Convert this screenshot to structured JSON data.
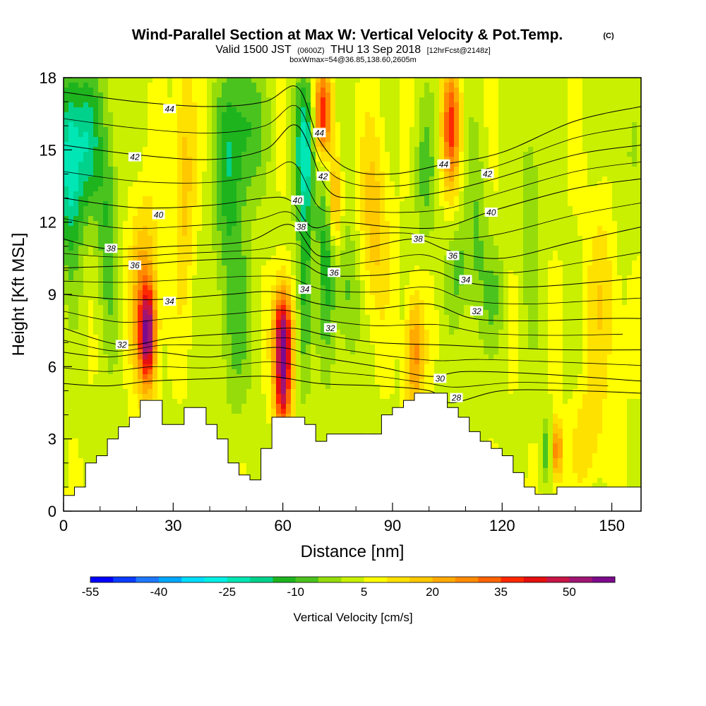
{
  "chart_data": {
    "type": "heatmap",
    "title": {
      "main": "Wind-Parallel Section at Max W: Vertical Velocity & Pot.Temp.",
      "copyright": "(C)"
    },
    "subtitle": {
      "valid_prefix": "Valid 1500 JST",
      "utc": "(0600Z)",
      "valid_suffix": "THU 13 Sep 2018",
      "forecast": "[12hrFcst@2148z]"
    },
    "subtitle2": "boxWmax=54@36.85,138.60,2605m",
    "xlabel": "Distance [nm]",
    "ylabel": "Height [Kft MSL]",
    "xlim": [
      0,
      158
    ],
    "ylim": [
      0,
      18
    ],
    "x_ticks": [
      {
        "value": 0,
        "label": "0"
      },
      {
        "value": 30,
        "label": "30"
      },
      {
        "value": 60,
        "label": "60"
      },
      {
        "value": 90,
        "label": "90"
      },
      {
        "value": 120,
        "label": "120"
      },
      {
        "value": 150,
        "label": "150"
      }
    ],
    "y_ticks": [
      {
        "value": 0,
        "label": "0"
      },
      {
        "value": 3,
        "label": "3"
      },
      {
        "value": 6,
        "label": "6"
      },
      {
        "value": 9,
        "label": "9"
      },
      {
        "value": 12,
        "label": "12"
      },
      {
        "value": 15,
        "label": "15"
      },
      {
        "value": 18,
        "label": "18"
      }
    ],
    "colorbar": {
      "label": "Vertical Velocity [cm/s]",
      "min": -55,
      "max": 60,
      "step": 5,
      "colors": [
        "#0000ff",
        "#0a3cff",
        "#1e78ff",
        "#00a8ff",
        "#00dcff",
        "#00f0e6",
        "#00e6b4",
        "#00d28c",
        "#1eb41e",
        "#4bc31e",
        "#96dc0a",
        "#c8f000",
        "#ffff00",
        "#ffe100",
        "#ffc800",
        "#ffaa00",
        "#ff8c00",
        "#ff6400",
        "#ff2800",
        "#e60f0f",
        "#c81446",
        "#a01473",
        "#7d0a8c"
      ],
      "tick_labels": [
        "-55",
        "-40",
        "-25",
        "-10",
        "5",
        "20",
        "35",
        "50"
      ],
      "tick_values": [
        -55,
        -40,
        -25,
        -10,
        5,
        20,
        35,
        50
      ]
    },
    "terrain_kft": [
      [
        0,
        0.65
      ],
      [
        3,
        1.0
      ],
      [
        6,
        2.0
      ],
      [
        9,
        2.3
      ],
      [
        12,
        3.0
      ],
      [
        15,
        3.5
      ],
      [
        18,
        3.9
      ],
      [
        21,
        4.6
      ],
      [
        27,
        3.6
      ],
      [
        33,
        4.3
      ],
      [
        39,
        3.6
      ],
      [
        42,
        3.0
      ],
      [
        45,
        2.0
      ],
      [
        48,
        1.5
      ],
      [
        51,
        1.3
      ],
      [
        54,
        2.6
      ],
      [
        57,
        3.9
      ],
      [
        60,
        3.9
      ],
      [
        63,
        3.9
      ],
      [
        66,
        3.6
      ],
      [
        69,
        2.9
      ],
      [
        72,
        3.2
      ],
      [
        75,
        3.2
      ],
      [
        78,
        3.2
      ],
      [
        81,
        3.2
      ],
      [
        84,
        3.2
      ],
      [
        87,
        4.0
      ],
      [
        90,
        4.3
      ],
      [
        93,
        4.6
      ],
      [
        96,
        4.9
      ],
      [
        99,
        4.9
      ],
      [
        102,
        4.9
      ],
      [
        105,
        4.3
      ],
      [
        108,
        3.9
      ],
      [
        111,
        3.3
      ],
      [
        114,
        2.9
      ],
      [
        117,
        2.6
      ],
      [
        120,
        2.3
      ],
      [
        123,
        1.6
      ],
      [
        126,
        1.0
      ],
      [
        129,
        0.7
      ],
      [
        132,
        0.7
      ],
      [
        135,
        1.0
      ],
      [
        138,
        1.0
      ],
      [
        141,
        1.0
      ],
      [
        144,
        1.0
      ],
      [
        147,
        1.0
      ],
      [
        150,
        1.0
      ],
      [
        153,
        1.0
      ],
      [
        158,
        1.0
      ]
    ],
    "theta_contours": [
      {
        "label": "44",
        "points": [
          [
            0,
            17.4
          ],
          [
            20,
            17.0
          ],
          [
            40,
            16.8
          ],
          [
            55,
            17.0
          ],
          [
            64,
            17.6
          ],
          [
            70,
            15.4
          ],
          [
            78,
            14.2
          ],
          [
            90,
            14.0
          ],
          [
            104,
            14.4
          ],
          [
            120,
            14.9
          ],
          [
            140,
            16.2
          ],
          [
            158,
            16.8
          ]
        ]
      },
      {
        "label": "42",
        "points": [
          [
            0,
            15.2
          ],
          [
            20,
            14.8
          ],
          [
            40,
            14.6
          ],
          [
            55,
            15.0
          ],
          [
            64,
            16.0
          ],
          [
            72,
            13.4
          ],
          [
            80,
            13.0
          ],
          [
            92,
            13.0
          ],
          [
            105,
            13.3
          ],
          [
            118,
            13.8
          ],
          [
            140,
            14.8
          ],
          [
            158,
            15.2
          ]
        ]
      },
      {
        "label": "40",
        "points": [
          [
            0,
            13.0
          ],
          [
            20,
            12.6
          ],
          [
            40,
            12.7
          ],
          [
            55,
            13.0
          ],
          [
            62,
            12.9
          ],
          [
            68,
            11.8
          ],
          [
            76,
            12.0
          ],
          [
            90,
            11.8
          ],
          [
            104,
            11.8
          ],
          [
            118,
            12.5
          ],
          [
            140,
            13.4
          ],
          [
            158,
            13.8
          ]
        ]
      },
      {
        "label": "38",
        "points": [
          [
            0,
            11.3
          ],
          [
            12,
            10.9
          ],
          [
            30,
            11.0
          ],
          [
            50,
            11.2
          ],
          [
            62,
            11.9
          ],
          [
            70,
            10.6
          ],
          [
            82,
            10.9
          ],
          [
            96,
            11.3
          ],
          [
            106,
            10.8
          ],
          [
            120,
            10.5
          ],
          [
            140,
            11.2
          ],
          [
            158,
            11.8
          ]
        ]
      },
      {
        "label": "36",
        "points": [
          [
            0,
            10.1
          ],
          [
            18,
            10.2
          ],
          [
            35,
            10.4
          ],
          [
            55,
            10.5
          ],
          [
            65,
            10.3
          ],
          [
            72,
            9.8
          ],
          [
            86,
            9.8
          ],
          [
            100,
            10.0
          ],
          [
            110,
            9.5
          ],
          [
            125,
            9.3
          ],
          [
            145,
            9.5
          ],
          [
            158,
            9.7
          ]
        ]
      },
      {
        "label": "34",
        "points": [
          [
            0,
            9.0
          ],
          [
            15,
            8.8
          ],
          [
            28,
            8.8
          ],
          [
            45,
            9.0
          ],
          [
            58,
            9.1
          ],
          [
            70,
            8.6
          ],
          [
            84,
            8.4
          ],
          [
            100,
            8.6
          ],
          [
            112,
            8.0
          ],
          [
            128,
            7.9
          ],
          [
            148,
            8.0
          ],
          [
            158,
            8.0
          ]
        ]
      },
      {
        "label": "32",
        "points": [
          [
            0,
            7.6
          ],
          [
            16,
            6.9
          ],
          [
            30,
            7.2
          ],
          [
            48,
            7.4
          ],
          [
            62,
            7.6
          ],
          [
            72,
            7.3
          ],
          [
            86,
            7.0
          ],
          [
            104,
            6.9
          ],
          [
            118,
            6.8
          ],
          [
            138,
            6.7
          ],
          [
            158,
            6.7
          ]
        ]
      },
      {
        "label": "30",
        "points": [
          [
            0,
            6.6
          ],
          [
            12,
            6.4
          ],
          [
            25,
            6.6
          ],
          [
            40,
            6.4
          ],
          [
            58,
            6.8
          ],
          [
            70,
            6.4
          ],
          [
            86,
            6.0
          ],
          [
            100,
            5.6
          ],
          [
            110,
            5.8
          ],
          [
            130,
            5.7
          ],
          [
            158,
            5.4
          ]
        ]
      },
      {
        "label": "28",
        "points": [
          [
            0,
            5.3
          ],
          [
            12,
            5.2
          ],
          [
            24,
            5.4
          ],
          [
            40,
            5.5
          ],
          [
            56,
            5.6
          ],
          [
            70,
            5.3
          ],
          [
            86,
            5.2
          ],
          [
            100,
            5.0
          ],
          [
            106,
            4.5
          ],
          [
            120,
            5.0
          ],
          [
            140,
            5.0
          ],
          [
            158,
            4.9
          ]
        ]
      }
    ],
    "contour_labels": [
      {
        "text": "44",
        "x": 29,
        "y": 16.7
      },
      {
        "text": "44",
        "x": 70,
        "y": 15.7
      },
      {
        "text": "44",
        "x": 104,
        "y": 14.4
      },
      {
        "text": "42",
        "x": 19.5,
        "y": 14.7
      },
      {
        "text": "42",
        "x": 71,
        "y": 13.9
      },
      {
        "text": "42",
        "x": 116,
        "y": 14.0
      },
      {
        "text": "40",
        "x": 26,
        "y": 12.3
      },
      {
        "text": "40",
        "x": 64,
        "y": 12.9
      },
      {
        "text": "40",
        "x": 117,
        "y": 12.4
      },
      {
        "text": "38",
        "x": 13,
        "y": 10.9
      },
      {
        "text": "38",
        "x": 65,
        "y": 11.8
      },
      {
        "text": "38",
        "x": 97,
        "y": 11.3
      },
      {
        "text": "36",
        "x": 19.5,
        "y": 10.2
      },
      {
        "text": "36",
        "x": 74,
        "y": 9.9
      },
      {
        "text": "36",
        "x": 106.5,
        "y": 10.6
      },
      {
        "text": "34",
        "x": 29,
        "y": 8.7
      },
      {
        "text": "34",
        "x": 66,
        "y": 9.2
      },
      {
        "text": "34",
        "x": 110,
        "y": 9.6
      },
      {
        "text": "32",
        "x": 16,
        "y": 6.9
      },
      {
        "text": "32",
        "x": 73,
        "y": 7.6
      },
      {
        "text": "32",
        "x": 113,
        "y": 8.3
      },
      {
        "text": "30",
        "x": 103,
        "y": 5.5
      },
      {
        "text": "28",
        "x": 107.5,
        "y": 4.7
      }
    ]
  }
}
